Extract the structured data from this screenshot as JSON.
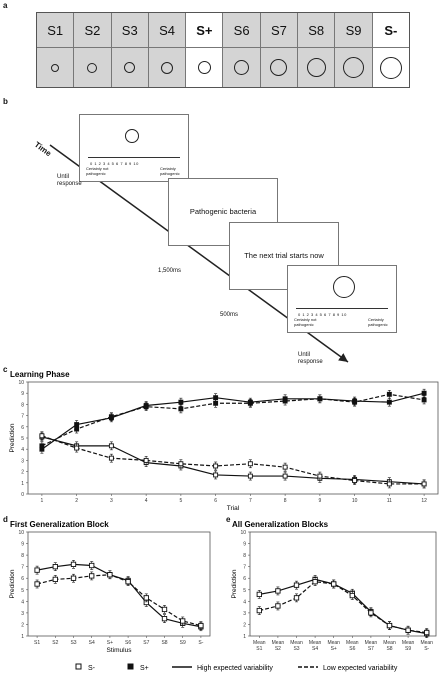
{
  "panels": {
    "a": "a",
    "b": "b",
    "c": "c",
    "d": "d",
    "e": "e"
  },
  "stimuli": [
    {
      "label": "S1",
      "size": 8,
      "highlight": false
    },
    {
      "label": "S2",
      "size": 10,
      "highlight": false
    },
    {
      "label": "S3",
      "size": 11,
      "highlight": false
    },
    {
      "label": "S4",
      "size": 12,
      "highlight": false
    },
    {
      "label": "S+",
      "size": 13,
      "highlight": true
    },
    {
      "label": "S6",
      "size": 15,
      "highlight": false
    },
    {
      "label": "S7",
      "size": 17,
      "highlight": false
    },
    {
      "label": "S8",
      "size": 19,
      "highlight": false
    },
    {
      "label": "S9",
      "size": 21,
      "highlight": false
    },
    {
      "label": "S-",
      "size": 22,
      "highlight": true
    }
  ],
  "procedure": {
    "time_label": "Time",
    "screen2_text": "Pathogenic bacteria",
    "screen3_text": "The next trial starts now",
    "scale_numbers": "0  1  2  3  4  5  6  7  8  9  10",
    "scale_left": "Certainly not pathogenic",
    "scale_right": "Certainly pathogenic",
    "until_response_1": "Until response",
    "duration_1": "1,500ms",
    "duration_2": "500ms",
    "until_response_2": "Until response"
  },
  "chart_data": [
    {
      "id": "c",
      "type": "line",
      "title": "Learning Phase",
      "xlabel": "Trial",
      "ylabel": "Prediction",
      "x": [
        1,
        2,
        3,
        4,
        5,
        6,
        7,
        8,
        9,
        10,
        11,
        12
      ],
      "xlim": [
        0.6,
        12.4
      ],
      "ylim": [
        0,
        10
      ],
      "yticks": [
        0,
        1,
        2,
        3,
        4,
        5,
        6,
        7,
        8,
        9,
        10
      ],
      "series": [
        {
          "stimulus": "S+",
          "variability": "high",
          "values": [
            4.0,
            6.2,
            6.8,
            7.9,
            8.2,
            8.6,
            8.2,
            8.5,
            8.5,
            8.3,
            8.2,
            9.0
          ]
        },
        {
          "stimulus": "S+",
          "variability": "low",
          "values": [
            4.3,
            5.8,
            6.9,
            7.8,
            7.6,
            8.1,
            8.1,
            8.3,
            8.5,
            8.2,
            8.9,
            8.4
          ]
        },
        {
          "stimulus": "S-",
          "variability": "high",
          "values": [
            5.1,
            4.3,
            4.3,
            2.8,
            2.5,
            1.7,
            1.6,
            1.6,
            1.4,
            1.3,
            1.1,
            0.9
          ]
        },
        {
          "stimulus": "S-",
          "variability": "low",
          "values": [
            5.2,
            4.1,
            3.2,
            3.0,
            2.7,
            2.5,
            2.7,
            2.4,
            1.6,
            1.2,
            0.9,
            0.9
          ]
        }
      ]
    },
    {
      "id": "d",
      "type": "line",
      "title": "First Generalization Block",
      "xlabel": "Stimulus",
      "ylabel": "Prediction",
      "categories": [
        "S1",
        "S2",
        "S3",
        "S4",
        "S+",
        "S6",
        "S7",
        "S8",
        "S9",
        "S-"
      ],
      "ylim": [
        1,
        10
      ],
      "yticks": [
        1,
        2,
        3,
        4,
        5,
        6,
        7,
        8,
        9,
        10
      ],
      "series": [
        {
          "variability": "high",
          "values": [
            6.7,
            7.0,
            7.2,
            7.1,
            6.3,
            5.8,
            3.9,
            2.5,
            2.1,
            1.8
          ]
        },
        {
          "variability": "low",
          "values": [
            5.5,
            5.9,
            6.0,
            6.2,
            6.3,
            5.7,
            4.3,
            3.3,
            2.3,
            1.9
          ]
        }
      ]
    },
    {
      "id": "e",
      "type": "line",
      "title": "All Generalization Blocks",
      "xlabel": "Stimulus",
      "ylabel": "Prediction",
      "categories": [
        "Mean S1",
        "Mean S2",
        "Mean S3",
        "Mean S4",
        "Mean S+",
        "Mean S6",
        "Mean S7",
        "Mean S8",
        "Mean S9",
        "Mean S-"
      ],
      "ylim": [
        1,
        10
      ],
      "yticks": [
        1,
        2,
        3,
        4,
        5,
        6,
        7,
        8,
        9,
        10
      ],
      "series": [
        {
          "variability": "high",
          "values": [
            4.6,
            4.9,
            5.4,
            5.9,
            5.5,
            4.7,
            3.1,
            1.9,
            1.5,
            1.2
          ]
        },
        {
          "variability": "low",
          "values": [
            3.2,
            3.6,
            4.3,
            5.7,
            5.5,
            4.5,
            3.0,
            1.9,
            1.5,
            1.3
          ]
        }
      ]
    }
  ],
  "legend": {
    "s_minus": "S-",
    "s_plus": "S+",
    "high": "High expected variability",
    "low": "Low expected variability"
  }
}
